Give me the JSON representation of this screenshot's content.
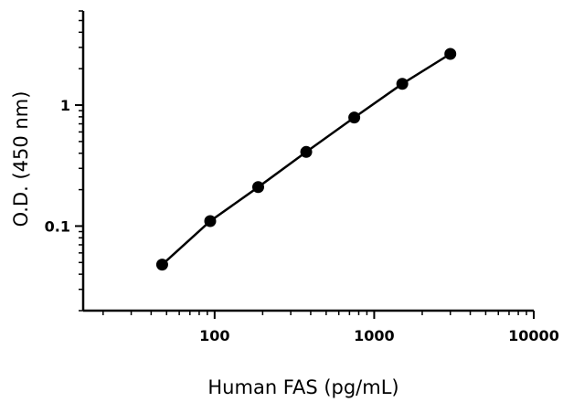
{
  "chart_data": {
    "type": "line",
    "title": "",
    "xlabel": "Human FAS (pg/mL)",
    "ylabel": "O.D. (450 nm)",
    "x_scale": "log",
    "y_scale": "log",
    "xlim": [
      15,
      10000
    ],
    "ylim": [
      0.02,
      6
    ],
    "x_ticks": [
      {
        "value": 100,
        "label": "100"
      },
      {
        "value": 1000,
        "label": "1000"
      },
      {
        "value": 10000,
        "label": "10000"
      }
    ],
    "y_ticks": [
      {
        "value": 0.1,
        "label": "0.1"
      },
      {
        "value": 1,
        "label": "1"
      }
    ],
    "grid": false,
    "legend": "none",
    "series": [
      {
        "x": [
          46.9,
          93.8,
          187.5,
          375,
          750,
          1500,
          3000
        ],
        "y": [
          0.048,
          0.11,
          0.21,
          0.41,
          0.79,
          1.5,
          2.65
        ]
      }
    ],
    "colors": {
      "line": "#000000",
      "marker": "#000000",
      "axis": "#000000"
    }
  }
}
